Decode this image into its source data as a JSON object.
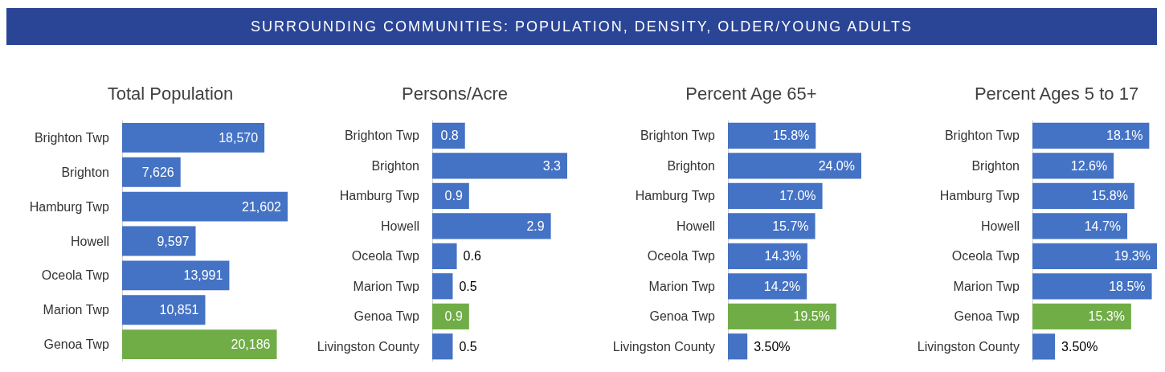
{
  "chart_data": [
    {
      "type": "other",
      "title": "SURROUNDING COMMUNITIES: POPULATION, DENSITY, OLDER/YOUNG ADULTS",
      "color": "#2b4596"
    },
    {
      "type": "bar",
      "orientation": "horizontal",
      "title": "Total Population",
      "tick_labels": "y",
      "categories": [
        "Brighton Twp",
        "Brighton",
        "Hamburg Twp",
        "Howell",
        "Oceola Twp",
        "Marion Twp",
        "Genoa Twp"
      ],
      "values": [
        18570,
        7626,
        21602,
        9597,
        13991,
        10851,
        20186
      ],
      "value_labels": [
        "18,570",
        "7,626",
        "21,602",
        "9,597",
        "13,991",
        "10,851",
        "20,186"
      ],
      "colors": [
        "#4472c4",
        "#4472c4",
        "#4472c4",
        "#4472c4",
        "#4472c4",
        "#4472c4",
        "#70ad47"
      ]
    },
    {
      "type": "bar",
      "orientation": "horizontal",
      "title": "Persons/Acre",
      "tick_labels": "y",
      "data_labels": true,
      "categories": [
        "Brighton Twp",
        "Brighton",
        "Hamburg Twp",
        "Howell",
        "Oceola Twp",
        "Marion Twp",
        "Genoa Twp",
        "Livingston County"
      ],
      "values": [
        0.8,
        3.3,
        0.9,
        2.9,
        0.6,
        0.5,
        0.9,
        0.5
      ],
      "colors": [
        "#4472c4",
        "#4472c4",
        "#4472c4",
        "#4472c4",
        "#4472c4",
        "#4472c4",
        "#70ad47",
        "#4472c4"
      ]
    },
    {
      "type": "bar",
      "orientation": "horizontal",
      "title": "Percent Age 65+",
      "tick_labels": "y",
      "categories": [
        "Brighton Twp",
        "Brighton",
        "Hamburg Twp",
        "Howell",
        "Oceola Twp",
        "Marion Twp",
        "Genoa Twp",
        "Livingston County"
      ],
      "values": [
        15.8,
        24.0,
        17.0,
        15.7,
        14.3,
        14.2,
        19.5,
        3.5
      ],
      "value_labels": [
        "15.8%",
        "24.0%",
        "17.0%",
        "15.7%",
        "14.3%",
        "14.2%",
        "19.5%",
        "3.50%"
      ],
      "colors": [
        "#4472c4",
        "#4472c4",
        "#4472c4",
        "#4472c4",
        "#4472c4",
        "#4472c4",
        "#70ad47",
        "#4472c4"
      ]
    },
    {
      "type": "bar",
      "orientation": "horizontal",
      "title": "Percent Ages 5 to 17",
      "tick_labels": "y",
      "categories": [
        "Brighton Twp",
        "Brighton",
        "Hamburg Twp",
        "Howell",
        "Oceola Twp",
        "Marion Twp",
        "Genoa Twp",
        "Livingston County"
      ],
      "values": [
        18.1,
        12.6,
        15.8,
        14.7,
        19.3,
        18.5,
        15.3,
        3.5
      ],
      "value_labels": [
        "18.1%",
        "12.6%",
        "15.8%",
        "14.7%",
        "19.3%",
        "18.5%",
        "15.3%",
        "3.50%"
      ],
      "colors": [
        "#4472c4",
        "#4472c4",
        "#4472c4",
        "#4472c4",
        "#4472c4",
        "#4472c4",
        "#70ad47",
        "#4472c4"
      ]
    }
  ]
}
